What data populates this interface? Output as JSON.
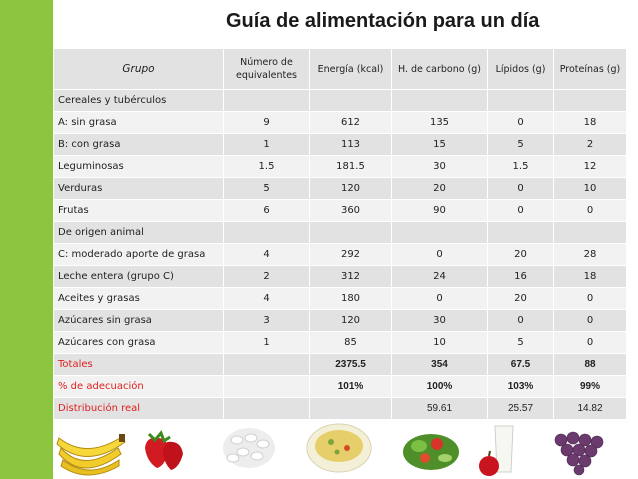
{
  "title": "Guía de alimentación para un día",
  "headers": [
    "Grupo",
    "Número de equivalentes",
    "Energía (kcal)",
    "H. de carbono (g)",
    "Lípidos (g)",
    "Proteínas (g)"
  ],
  "rows": [
    {
      "label": "Cereales y tubérculos",
      "values": [
        "",
        "",
        "",
        "",
        ""
      ]
    },
    {
      "label": "A: sin grasa",
      "values": [
        "9",
        "612",
        "135",
        "0",
        "18"
      ]
    },
    {
      "label": "B: con grasa",
      "values": [
        "1",
        "113",
        "15",
        "5",
        "2"
      ]
    },
    {
      "label": "Leguminosas",
      "values": [
        "1.5",
        "181.5",
        "30",
        "1.5",
        "12"
      ]
    },
    {
      "label": "Verduras",
      "values": [
        "5",
        "120",
        "20",
        "0",
        "10"
      ]
    },
    {
      "label": "Frutas",
      "values": [
        "6",
        "360",
        "90",
        "0",
        "0"
      ]
    },
    {
      "label": "De origen animal",
      "values": [
        "",
        "",
        "",
        "",
        ""
      ]
    },
    {
      "label": "C: moderado aporte de grasa",
      "values": [
        "4",
        "292",
        "0",
        "20",
        "28"
      ]
    },
    {
      "label": "Leche entera (grupo C)",
      "values": [
        "2",
        "312",
        "24",
        "16",
        "18"
      ]
    },
    {
      "label": "Aceites y grasas",
      "values": [
        "4",
        "180",
        "0",
        "20",
        "0"
      ]
    },
    {
      "label": "Azúcares sin grasa",
      "values": [
        "3",
        "120",
        "30",
        "0",
        "0"
      ]
    },
    {
      "label": "Azúcares con grasa",
      "values": [
        "1",
        "85",
        "10",
        "5",
        "0"
      ]
    }
  ],
  "totals": {
    "label": "Totales",
    "values": [
      "",
      "2375.5",
      "354",
      "67.5",
      "88"
    ]
  },
  "adecuacion": {
    "label": "% de adecuación",
    "values": [
      "",
      "101%",
      "100%",
      "103%",
      "99%"
    ]
  },
  "distribucion": {
    "label": "Distribución real",
    "values": [
      "",
      "",
      "59.61",
      "25.57",
      "14.82"
    ]
  },
  "food_images": [
    "bananas-icon",
    "strawberries-icon",
    "white-beans-icon",
    "rice-salad-icon",
    "vegetable-salad-icon",
    "milk-apple-icon",
    "grapes-icon"
  ],
  "colors": {
    "accent_green": "#8cc63f",
    "red_text": "#e02020",
    "row_dark": "#e2e2e2",
    "row_light": "#f2f2f2"
  }
}
